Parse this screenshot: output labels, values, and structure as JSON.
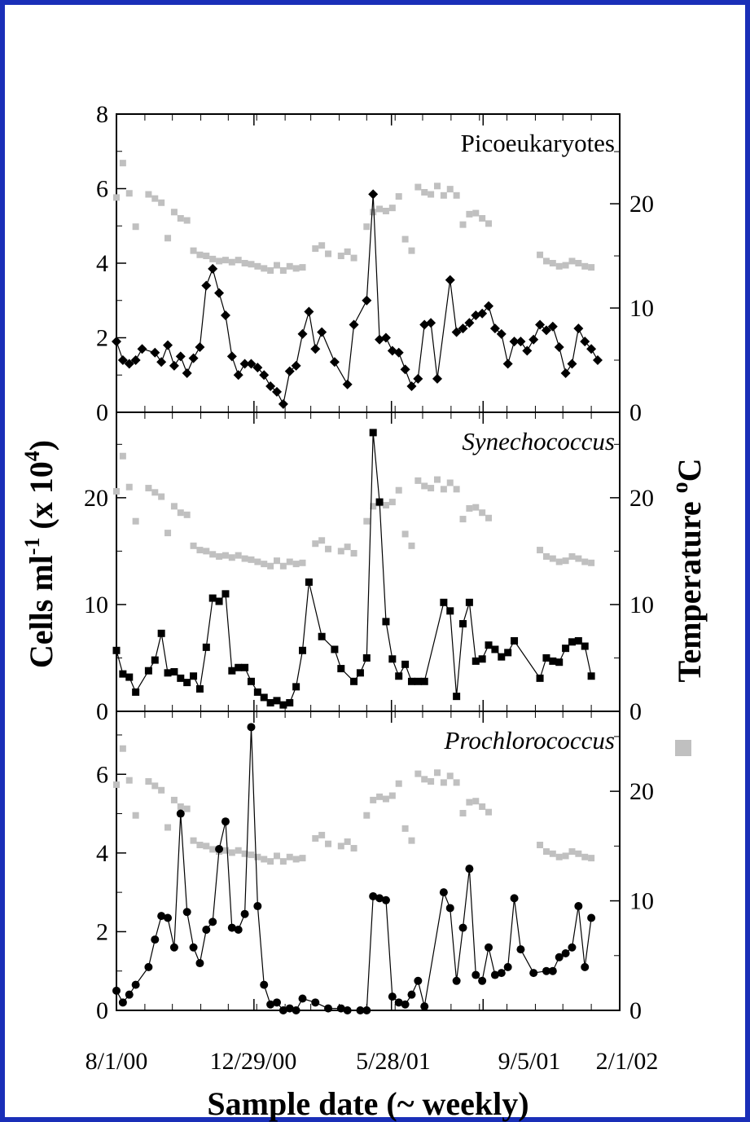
{
  "chart_data": {
    "type": "line",
    "x_axis": {
      "label": "Sample  date (~ weekly)",
      "tick_labels": [
        "8/1/00",
        "12/29/00",
        "5/28/01",
        "9/5/01",
        "2/1/02"
      ],
      "range": [
        "8/1/00",
        "2/1/02"
      ]
    },
    "left_axis_label": {
      "main": "Cells ml",
      "sup1": "-1",
      "mid": " (x 10",
      "sup2": "4",
      "end": ")"
    },
    "right_axis_label": "Temperature ",
    "right_axis_label_sup": "o",
    "right_axis_label_end": "C",
    "right_axis_legend_color": "#c0c0c0",
    "panels": [
      {
        "title": "Picoeukaryotes",
        "title_style": "normal",
        "marker": "diamond",
        "ylim": [
          0,
          8
        ],
        "yticks": [
          "0",
          "2",
          "4",
          "6",
          "8"
        ],
        "temp_ylim": [
          0,
          28.6
        ],
        "temp_ticks": [
          "0",
          "10",
          "20"
        ],
        "series": {
          "name": "Picoeukaryotes",
          "color": "#000000",
          "dates": [
            "8/1/00",
            "8/8/00",
            "8/15/00",
            "8/22/00",
            "8/29/00",
            "9/12/00",
            "9/19/00",
            "9/26/00",
            "10/3/00",
            "10/10/00",
            "10/17/00",
            "10/24/00",
            "10/31/00",
            "11/7/00",
            "11/14/00",
            "11/21/00",
            "11/28/00",
            "12/5/00",
            "12/12/00",
            "12/19/00",
            "12/26/00",
            "1/2/01",
            "1/9/01",
            "1/16/01",
            "1/23/01",
            "1/30/01",
            "2/6/01",
            "2/13/01",
            "2/20/01",
            "2/27/01",
            "3/6/01",
            "3/13/01",
            "3/27/01",
            "4/10/01",
            "4/17/01",
            "5/1/01",
            "5/8/01",
            "5/15/01",
            "5/22/01",
            "5/29/01",
            "6/5/01",
            "6/12/01",
            "6/19/01",
            "6/26/01",
            "7/3/01",
            "7/10/01",
            "7/17/01",
            "7/31/01",
            "8/7/01",
            "8/14/01",
            "8/21/01",
            "8/28/01",
            "9/4/01",
            "9/11/01",
            "9/18/01",
            "9/25/01",
            "10/2/01",
            "10/9/01",
            "10/16/01",
            "10/23/01",
            "10/30/01",
            "11/6/01",
            "11/13/01",
            "11/20/01",
            "11/27/01",
            "12/4/01",
            "12/11/01",
            "12/18/01",
            "12/25/01",
            "1/1/02",
            "1/8/02"
          ],
          "values": [
            1.9,
            1.4,
            1.3,
            1.4,
            1.7,
            1.6,
            1.35,
            1.8,
            1.25,
            1.5,
            1.05,
            1.45,
            1.75,
            3.4,
            3.85,
            3.2,
            2.6,
            1.5,
            1.0,
            1.3,
            1.3,
            1.2,
            1.0,
            0.7,
            0.55,
            0.22,
            1.1,
            1.25,
            2.1,
            2.7,
            1.7,
            2.15,
            1.35,
            0.75,
            2.35,
            3.0,
            5.85,
            1.95,
            2.0,
            1.65,
            1.6,
            1.15,
            0.7,
            0.9,
            2.35,
            2.4,
            0.9,
            3.55,
            2.15,
            2.25,
            2.4,
            2.6,
            2.65,
            2.85,
            2.25,
            2.1,
            1.3,
            1.9,
            1.9,
            1.65,
            1.95,
            2.35,
            2.2,
            2.3,
            1.75,
            1.05,
            1.3,
            2.25,
            1.9,
            1.7,
            1.4
          ]
        },
        "temperature": {
          "name": "Temperature",
          "color": "#c0c0c0",
          "dates": [
            "8/1/00",
            "8/8/00",
            "8/15/00",
            "8/22/00",
            "9/5/00",
            "9/12/00",
            "9/19/00",
            "9/26/00",
            "10/3/00",
            "10/10/00",
            "10/17/00",
            "10/24/00",
            "10/31/00",
            "11/7/00",
            "11/14/00",
            "11/21/00",
            "11/28/00",
            "12/5/00",
            "12/12/00",
            "12/19/00",
            "12/26/00",
            "1/2/01",
            "1/9/01",
            "1/16/01",
            "1/23/01",
            "1/30/01",
            "2/6/01",
            "2/13/01",
            "2/20/01",
            "3/6/01",
            "3/13/01",
            "3/20/01",
            "4/3/01",
            "4/10/01",
            "4/17/01",
            "5/1/01",
            "5/8/01",
            "5/15/01",
            "5/22/01",
            "5/29/01",
            "6/5/01",
            "6/12/01",
            "6/19/01",
            "6/26/01",
            "7/3/01",
            "7/10/01",
            "7/17/01",
            "7/24/01",
            "7/31/01",
            "8/7/01",
            "8/14/01",
            "8/21/01",
            "8/28/01",
            "9/4/01",
            "9/11/01",
            "11/6/01",
            "11/13/01",
            "11/20/01",
            "11/27/01",
            "12/4/01",
            "12/11/01",
            "12/18/01",
            "12/25/01",
            "1/1/02"
          ],
          "values": [
            20.6,
            23.9,
            21.0,
            17.8,
            20.9,
            20.5,
            20.1,
            16.7,
            19.2,
            18.6,
            18.4,
            15.5,
            15.1,
            15.0,
            14.7,
            14.5,
            14.6,
            14.4,
            14.6,
            14.3,
            14.2,
            14.0,
            13.8,
            13.6,
            14.1,
            13.6,
            14.0,
            13.8,
            13.9,
            15.7,
            16.0,
            15.2,
            15.0,
            15.4,
            14.8,
            17.8,
            19.2,
            19.5,
            19.3,
            19.6,
            20.7,
            16.6,
            15.5,
            21.6,
            21.1,
            20.9,
            21.7,
            20.8,
            21.4,
            20.8,
            18.0,
            19.0,
            19.1,
            18.6,
            18.1,
            15.1,
            14.5,
            14.3,
            14.0,
            14.1,
            14.5,
            14.3,
            14.0,
            13.9
          ]
        }
      },
      {
        "title": "Synechococcus",
        "title_style": "italic",
        "marker": "square",
        "ylim": [
          0,
          28
        ],
        "yticks": [
          "0",
          "10",
          "20"
        ],
        "temp_ylim": [
          0,
          28
        ],
        "temp_ticks": [
          "0",
          "10",
          "20"
        ],
        "series": {
          "name": "Synechococcus",
          "color": "#000000",
          "dates": [
            "8/1/00",
            "8/8/00",
            "8/15/00",
            "8/22/00",
            "9/5/00",
            "9/12/00",
            "9/19/00",
            "9/26/00",
            "10/3/00",
            "10/10/00",
            "10/17/00",
            "10/24/00",
            "10/31/00",
            "11/7/00",
            "11/14/00",
            "11/21/00",
            "11/28/00",
            "12/5/00",
            "12/12/00",
            "12/19/00",
            "12/26/00",
            "1/2/01",
            "1/9/01",
            "1/16/01",
            "1/23/01",
            "1/30/01",
            "2/6/01",
            "2/13/01",
            "2/20/01",
            "2/27/01",
            "3/13/01",
            "3/27/01",
            "4/3/01",
            "4/17/01",
            "4/24/01",
            "5/1/01",
            "5/8/01",
            "5/15/01",
            "5/22/01",
            "5/29/01",
            "6/5/01",
            "6/12/01",
            "6/19/01",
            "6/26/01",
            "7/3/01",
            "7/24/01",
            "7/31/01",
            "8/7/01",
            "8/14/01",
            "8/21/01",
            "8/28/01",
            "9/4/01",
            "9/11/01",
            "9/18/01",
            "9/25/01",
            "10/2/01",
            "10/9/01",
            "11/6/01",
            "11/13/01",
            "11/20/01",
            "11/27/01",
            "12/4/01",
            "12/11/01",
            "12/18/01",
            "12/25/01",
            "1/1/02"
          ],
          "values": [
            5.7,
            3.5,
            3.2,
            1.8,
            3.8,
            4.8,
            7.3,
            3.6,
            3.7,
            3.1,
            2.7,
            3.3,
            2.1,
            6.0,
            10.6,
            10.3,
            11.0,
            3.8,
            4.1,
            4.1,
            2.8,
            1.8,
            1.3,
            0.8,
            1.0,
            0.6,
            0.8,
            2.3,
            5.7,
            12.1,
            7.0,
            5.8,
            4.0,
            2.8,
            3.6,
            5.0,
            26.1,
            19.6,
            8.4,
            4.9,
            3.3,
            4.4,
            2.8,
            2.8,
            2.8,
            10.2,
            9.4,
            1.4,
            8.2,
            10.2,
            4.7,
            4.9,
            6.2,
            5.8,
            5.1,
            5.5,
            6.6,
            3.1,
            5.0,
            4.7,
            4.6,
            5.9,
            6.5,
            6.6,
            6.1,
            3.3
          ]
        },
        "temperature": {
          "name": "Temperature",
          "color": "#c0c0c0",
          "dates": [
            "8/1/00",
            "8/8/00",
            "8/15/00",
            "8/22/00",
            "9/5/00",
            "9/12/00",
            "9/19/00",
            "9/26/00",
            "10/3/00",
            "10/10/00",
            "10/17/00",
            "10/24/00",
            "10/31/00",
            "11/7/00",
            "11/14/00",
            "11/21/00",
            "11/28/00",
            "12/5/00",
            "12/12/00",
            "12/19/00",
            "12/26/00",
            "1/2/01",
            "1/9/01",
            "1/16/01",
            "1/23/01",
            "1/30/01",
            "2/6/01",
            "2/13/01",
            "2/20/01",
            "3/6/01",
            "3/13/01",
            "3/20/01",
            "4/3/01",
            "4/10/01",
            "4/17/01",
            "5/1/01",
            "5/8/01",
            "5/15/01",
            "5/22/01",
            "5/29/01",
            "6/5/01",
            "6/12/01",
            "6/19/01",
            "6/26/01",
            "7/3/01",
            "7/10/01",
            "7/17/01",
            "7/24/01",
            "7/31/01",
            "8/7/01",
            "8/14/01",
            "8/21/01",
            "8/28/01",
            "9/4/01",
            "9/11/01",
            "11/6/01",
            "11/13/01",
            "11/20/01",
            "11/27/01",
            "12/4/01",
            "12/11/01",
            "12/18/01",
            "12/25/01",
            "1/1/02"
          ],
          "values": [
            20.6,
            23.9,
            21.0,
            17.8,
            20.9,
            20.5,
            20.1,
            16.7,
            19.2,
            18.6,
            18.4,
            15.5,
            15.1,
            15.0,
            14.7,
            14.5,
            14.6,
            14.4,
            14.6,
            14.3,
            14.2,
            14.0,
            13.8,
            13.6,
            14.1,
            13.6,
            14.0,
            13.8,
            13.9,
            15.7,
            16.0,
            15.2,
            15.0,
            15.4,
            14.8,
            17.8,
            19.2,
            19.5,
            19.3,
            19.6,
            20.7,
            16.6,
            15.5,
            21.6,
            21.1,
            20.9,
            21.7,
            20.8,
            21.4,
            20.8,
            18.0,
            19.0,
            19.1,
            18.6,
            18.1,
            15.1,
            14.5,
            14.3,
            14.0,
            14.1,
            14.5,
            14.3,
            14.0,
            13.9
          ]
        }
      },
      {
        "title": "Prochlorococcus",
        "title_style": "italic",
        "marker": "circle",
        "ylim": [
          0,
          7.6
        ],
        "yticks": [
          "0",
          "2",
          "4",
          "6"
        ],
        "temp_ylim": [
          0,
          27.3
        ],
        "temp_ticks": [
          "0",
          "10",
          "20"
        ],
        "series": {
          "name": "Prochlorococcus",
          "color": "#000000",
          "dates": [
            "8/1/00",
            "8/8/00",
            "8/15/00",
            "8/22/00",
            "9/5/00",
            "9/12/00",
            "9/19/00",
            "9/26/00",
            "10/3/00",
            "10/10/00",
            "10/17/00",
            "10/24/00",
            "10/31/00",
            "11/7/00",
            "11/14/00",
            "11/21/00",
            "11/28/00",
            "12/5/00",
            "12/12/00",
            "12/19/00",
            "12/26/00",
            "1/2/01",
            "1/9/01",
            "1/16/01",
            "1/23/01",
            "1/30/01",
            "2/6/01",
            "2/13/01",
            "2/20/01",
            "3/6/01",
            "3/20/01",
            "4/3/01",
            "4/10/01",
            "4/24/01",
            "5/1/01",
            "5/8/01",
            "5/15/01",
            "5/22/01",
            "5/29/01",
            "6/5/01",
            "6/12/01",
            "6/19/01",
            "6/26/01",
            "7/3/01",
            "7/24/01",
            "7/31/01",
            "8/7/01",
            "8/14/01",
            "8/21/01",
            "8/28/01",
            "9/4/01",
            "9/11/01",
            "9/18/01",
            "9/25/01",
            "10/2/01",
            "10/9/01",
            "10/16/01",
            "10/30/01",
            "11/13/01",
            "11/20/01",
            "11/27/01",
            "12/4/01",
            "12/11/01",
            "12/18/01",
            "12/25/01",
            "1/1/02"
          ],
          "values": [
            0.5,
            0.2,
            0.4,
            0.65,
            1.1,
            1.8,
            2.4,
            2.35,
            1.6,
            5.0,
            2.5,
            1.6,
            1.2,
            2.05,
            2.25,
            4.1,
            4.8,
            2.1,
            2.05,
            2.45,
            7.2,
            2.65,
            0.65,
            0.15,
            0.2,
            0.0,
            0.05,
            0.0,
            0.3,
            0.2,
            0.05,
            0.05,
            0.0,
            0.0,
            0.0,
            2.9,
            2.85,
            2.8,
            0.35,
            0.2,
            0.15,
            0.4,
            0.75,
            0.1,
            3.0,
            2.6,
            0.75,
            2.1,
            3.6,
            0.9,
            0.75,
            1.6,
            0.9,
            0.95,
            1.1,
            2.85,
            1.55,
            0.95,
            1.0,
            1.0,
            1.35,
            1.45,
            1.6,
            2.65,
            1.1,
            2.35
          ]
        },
        "temperature": {
          "name": "Temperature",
          "color": "#c0c0c0",
          "dates": [
            "8/1/00",
            "8/8/00",
            "8/15/00",
            "8/22/00",
            "9/5/00",
            "9/12/00",
            "9/19/00",
            "9/26/00",
            "10/3/00",
            "10/10/00",
            "10/17/00",
            "10/24/00",
            "10/31/00",
            "11/7/00",
            "11/14/00",
            "11/21/00",
            "11/28/00",
            "12/5/00",
            "12/12/00",
            "12/19/00",
            "12/26/00",
            "1/2/01",
            "1/9/01",
            "1/16/01",
            "1/23/01",
            "1/30/01",
            "2/6/01",
            "2/13/01",
            "2/20/01",
            "3/6/01",
            "3/13/01",
            "3/20/01",
            "4/3/01",
            "4/10/01",
            "4/17/01",
            "5/1/01",
            "5/8/01",
            "5/15/01",
            "5/22/01",
            "5/29/01",
            "6/5/01",
            "6/12/01",
            "6/19/01",
            "6/26/01",
            "7/3/01",
            "7/10/01",
            "7/17/01",
            "7/24/01",
            "7/31/01",
            "8/7/01",
            "8/14/01",
            "8/21/01",
            "8/28/01",
            "9/4/01",
            "9/11/01",
            "11/6/01",
            "11/13/01",
            "11/20/01",
            "11/27/01",
            "12/4/01",
            "12/11/01",
            "12/18/01",
            "12/25/01",
            "1/1/02"
          ],
          "values": [
            20.6,
            23.9,
            21.0,
            17.8,
            20.9,
            20.5,
            20.1,
            16.7,
            19.2,
            18.6,
            18.4,
            15.5,
            15.1,
            15.0,
            14.7,
            14.5,
            14.6,
            14.4,
            14.6,
            14.3,
            14.2,
            14.0,
            13.8,
            13.6,
            14.1,
            13.6,
            14.0,
            13.8,
            13.9,
            15.7,
            16.0,
            15.2,
            15.0,
            15.4,
            14.8,
            17.8,
            19.2,
            19.5,
            19.3,
            19.6,
            20.7,
            16.6,
            15.5,
            21.6,
            21.1,
            20.9,
            21.7,
            20.8,
            21.4,
            20.8,
            18.0,
            19.0,
            19.1,
            18.6,
            18.1,
            15.1,
            14.5,
            14.3,
            14.0,
            14.1,
            14.5,
            14.3,
            14.0,
            13.9
          ]
        }
      }
    ]
  }
}
